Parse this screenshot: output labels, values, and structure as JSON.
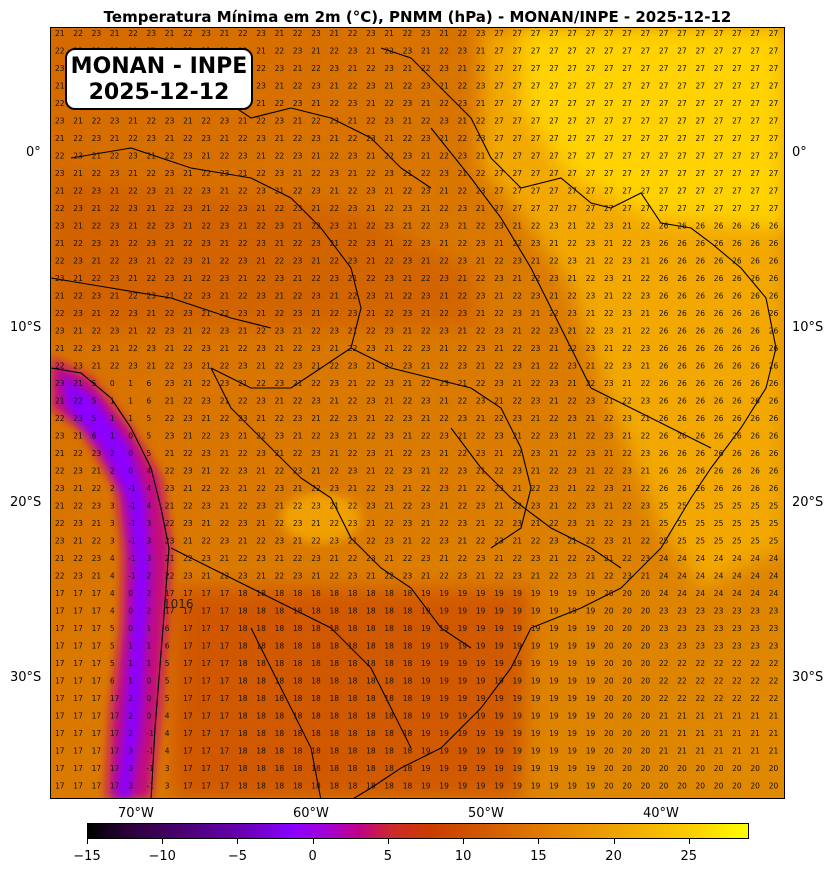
{
  "header": {
    "title": "Temperatura Mínima em 2m (°C), PNMM (hPa) - MONAN/INPE - 2025-12-12"
  },
  "stamp": {
    "line1": "MONAN - INPE",
    "line2": "2025-12-12"
  },
  "axes": {
    "lat_left": [
      "0°",
      "10°S",
      "20°S",
      "30°S"
    ],
    "lat_right": [
      "0°",
      "10°S",
      "20°S",
      "30°S"
    ],
    "lon": [
      "70°W",
      "60°W",
      "50°W",
      "40°W"
    ]
  },
  "colorbar": {
    "ticks": [
      "−15",
      "−10",
      "−5",
      "0",
      "5",
      "10",
      "15",
      "20",
      "25"
    ],
    "range": [
      -15,
      29
    ]
  },
  "pressure_labels": [
    "1016"
  ],
  "colors": {
    "cold": "#8a00ff",
    "warm": "#e07800",
    "hot": "#ffd800",
    "coast": "#000000"
  }
}
